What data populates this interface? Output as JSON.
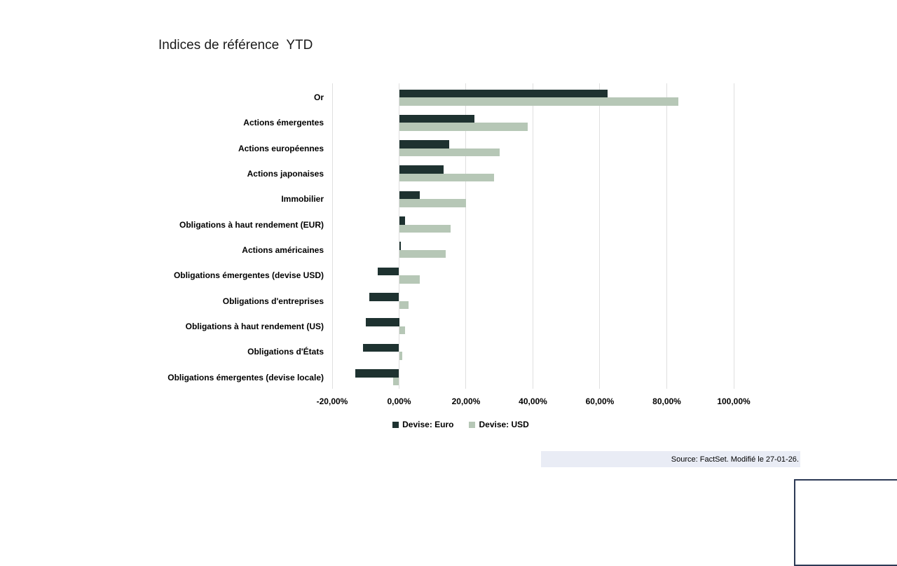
{
  "title": "Indices de référence  YTD",
  "chart_data": {
    "type": "bar",
    "orientation": "horizontal",
    "title": "Indices de référence  YTD",
    "categories": [
      "Or",
      "Actions émergentes",
      "Actions européennes",
      "Actions japonaises",
      "Immobilier",
      "Obligations à haut rendement (EUR)",
      "Actions américaines",
      "Obligations émergentes (devise USD)",
      "Obligations d'entreprises",
      "Obligations à haut rendement (US)",
      "Obligations d'États",
      "Obligations émergentes (devise locale)"
    ],
    "series": [
      {
        "name": "Devise: Euro",
        "color": "#1e3230",
        "values": [
          62.3,
          22.5,
          15.0,
          13.4,
          6.1,
          1.7,
          0.6,
          -6.3,
          -8.9,
          -10.0,
          -10.8,
          -13.1
        ]
      },
      {
        "name": "Devise: USD",
        "color": "#b6c7b6",
        "values": [
          83.5,
          38.5,
          30.1,
          28.3,
          20.0,
          15.3,
          14.0,
          6.1,
          2.9,
          1.7,
          1.0,
          -1.7
        ]
      }
    ],
    "xlabel": "",
    "ylabel": "",
    "xlim": [
      -20,
      100
    ],
    "x_ticks": [
      -20,
      0,
      20,
      40,
      60,
      80,
      100
    ],
    "x_tick_labels": [
      "-20,00%",
      "0,00%",
      "20,00%",
      "40,00%",
      "60,00%",
      "80,00%",
      "100,00%"
    ],
    "grid": true,
    "legend_position": "bottom",
    "unit": "percent"
  },
  "legend": {
    "items": [
      {
        "label": "Devise: Euro",
        "color": "#1e3230"
      },
      {
        "label": "Devise: USD",
        "color": "#b6c7b6"
      }
    ]
  },
  "source": {
    "text": "Source: FactSet. Modifié le 27-01-26."
  },
  "colors": {
    "euro_bar": "#1e3230",
    "usd_bar": "#b6c7b6",
    "gridline": "#dfdfdf",
    "source_band_bg": "#e9ecf5",
    "corner_box_border": "#2d3a56"
  }
}
